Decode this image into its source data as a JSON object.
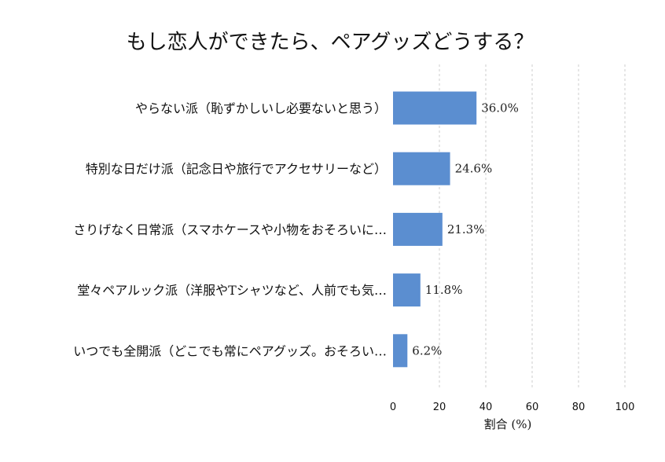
{
  "chart_data": {
    "type": "bar",
    "orientation": "horizontal",
    "title": "もし恋人ができたら、ペアグッズどうする？",
    "xlabel": "割合 (%)",
    "ylabel": "",
    "xlim": [
      0,
      100
    ],
    "xticks": [
      "0",
      "20",
      "40",
      "60",
      "80",
      "100"
    ],
    "grid": "vertical-dashed",
    "bar_color": "#5b8ed0",
    "categories": [
      "やらない派（恥ずかしいし必要ないと思う）",
      "特別な日だけ派（記念日や旅行でアクセサリーなど）",
      "さりげなく日常派（スマホケースや小物をおそろいに…",
      "堂々ペアルック派（洋服やTシャツなど、人前でも気…",
      "いつでも全開派（どこでも常にペアグッズ。おそろい…"
    ],
    "values": [
      36.0,
      24.6,
      21.3,
      11.8,
      6.2
    ],
    "value_labels": [
      "36.0%",
      "24.6%",
      "21.3%",
      "11.8%",
      "6.2%"
    ]
  }
}
